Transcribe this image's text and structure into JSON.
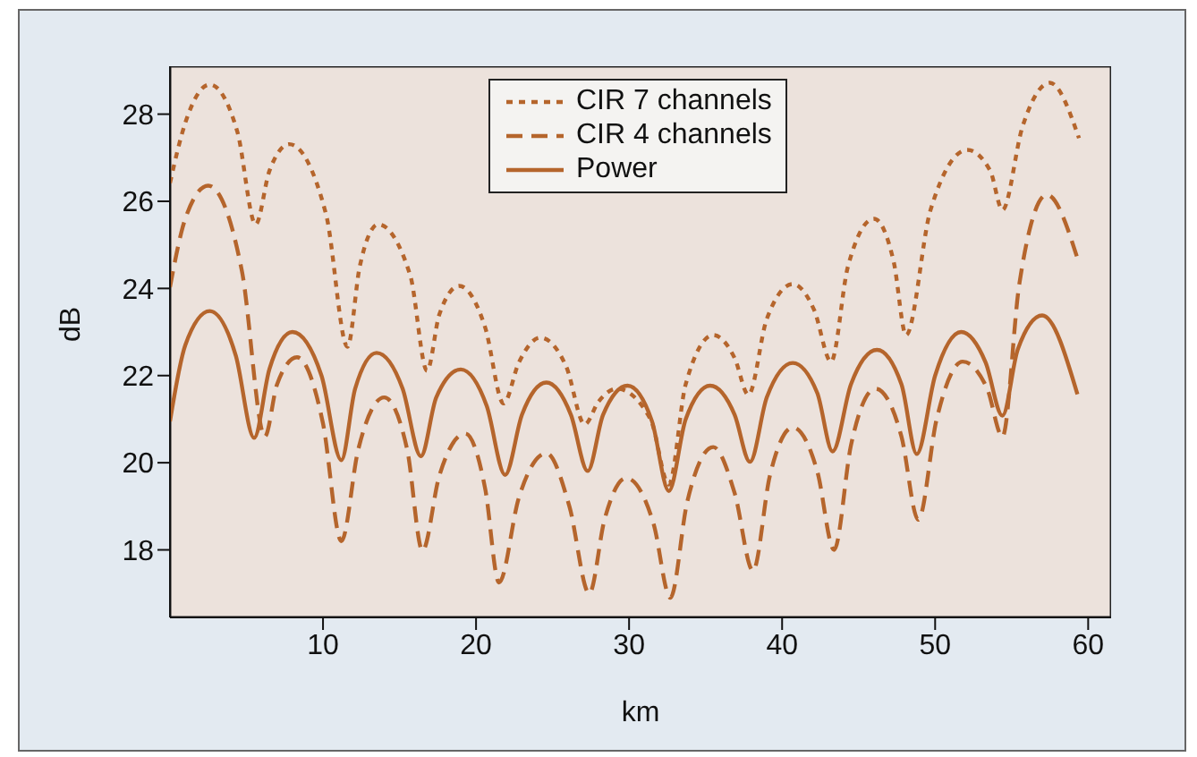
{
  "chart_data": {
    "type": "line",
    "xlabel": "km",
    "ylabel": "dB",
    "xlim": [
      0,
      61.5
    ],
    "xticks": [
      10,
      20,
      30,
      40,
      50,
      60
    ],
    "ylim": [
      16.45,
      29.1
    ],
    "yticks": [
      18,
      20,
      22,
      24,
      26,
      28
    ],
    "grid": false,
    "legend": "top",
    "marker": "none",
    "series": [
      {
        "name": "CIR 7 channels",
        "color": "#b5652c",
        "line_style": "dotted",
        "x": [
          0,
          1.0,
          2.6,
          4.4,
          5.6,
          6.5,
          7.8,
          10.2,
          11.6,
          12.4,
          13.6,
          15.7,
          16.8,
          17.6,
          18.9,
          20.6,
          21.8,
          22.8,
          24.2,
          25.9,
          27.1,
          28.0,
          29.2,
          31.4,
          32.6,
          33.7,
          35.5,
          36.9,
          37.8,
          39.0,
          40.7,
          42.1,
          43.2,
          44.3,
          46.0,
          47.3,
          48.1,
          49.7,
          52.1,
          53.6,
          54.4,
          55.7,
          57.5,
          59.4
        ],
        "values": [
          26.42,
          27.8,
          28.68,
          27.6,
          25.47,
          26.7,
          27.31,
          25.7,
          22.66,
          24.5,
          25.47,
          24.3,
          22.11,
          23.4,
          24.06,
          23.1,
          21.36,
          22.3,
          22.87,
          22.2,
          20.88,
          21.4,
          21.7,
          21.0,
          19.5,
          21.8,
          22.93,
          22.4,
          21.56,
          23.3,
          24.1,
          23.5,
          22.32,
          24.5,
          25.6,
          24.6,
          22.93,
          25.8,
          27.18,
          26.7,
          25.8,
          27.7,
          28.72,
          27.45
        ]
      },
      {
        "name": "CIR 4 channels",
        "color": "#b5652c",
        "line_style": "dashed",
        "x": [
          0,
          1.0,
          2.5,
          4.7,
          6.2,
          7.0,
          8.3,
          10.0,
          11.2,
          12.3,
          14.0,
          15.5,
          16.5,
          17.6,
          19.3,
          20.6,
          21.5,
          22.8,
          24.6,
          26.1,
          27.4,
          28.4,
          29.8,
          31.6,
          32.7,
          33.8,
          35.5,
          36.9,
          38.1,
          39.2,
          40.7,
          42.3,
          43.4,
          44.5,
          46.1,
          47.8,
          48.9,
          50.1,
          51.8,
          53.4,
          54.4,
          55.5,
          57.3,
          59.3
        ],
        "values": [
          24.03,
          25.6,
          26.36,
          24.4,
          20.6,
          21.8,
          22.42,
          20.9,
          18.2,
          20.3,
          21.5,
          20.3,
          17.98,
          19.7,
          20.67,
          19.4,
          17.25,
          19.2,
          20.22,
          19.0,
          17.0,
          18.7,
          19.65,
          18.6,
          16.9,
          19.1,
          20.36,
          19.3,
          17.52,
          19.7,
          20.81,
          19.8,
          18.0,
          20.4,
          21.7,
          20.6,
          18.69,
          21.0,
          22.32,
          21.7,
          20.6,
          24.1,
          26.15,
          24.69
        ]
      },
      {
        "name": "Power",
        "color": "#b5652c",
        "line_style": "solid",
        "x": [
          0,
          1.0,
          2.6,
          4.3,
          5.5,
          6.5,
          8.0,
          9.9,
          11.2,
          12.1,
          13.5,
          15.2,
          16.4,
          17.4,
          19.0,
          20.7,
          21.9,
          23.0,
          24.6,
          26.2,
          27.3,
          28.3,
          29.9,
          31.5,
          32.6,
          33.7,
          35.3,
          36.9,
          37.9,
          39.0,
          40.7,
          42.3,
          43.3,
          44.5,
          46.2,
          47.8,
          48.8,
          50.0,
          51.7,
          53.3,
          54.4,
          55.4,
          57.0,
          59.3
        ],
        "values": [
          20.95,
          22.7,
          23.48,
          22.46,
          20.57,
          22.15,
          23.0,
          22.0,
          20.06,
          21.7,
          22.52,
          21.7,
          20.15,
          21.5,
          22.14,
          21.3,
          19.72,
          21.1,
          21.84,
          21.1,
          19.81,
          21.1,
          21.77,
          20.95,
          19.35,
          21.0,
          21.77,
          21.1,
          20.02,
          21.5,
          22.29,
          21.6,
          20.26,
          21.8,
          22.59,
          21.8,
          20.2,
          22.0,
          23.0,
          22.3,
          21.08,
          22.6,
          23.38,
          21.57
        ]
      }
    ]
  }
}
